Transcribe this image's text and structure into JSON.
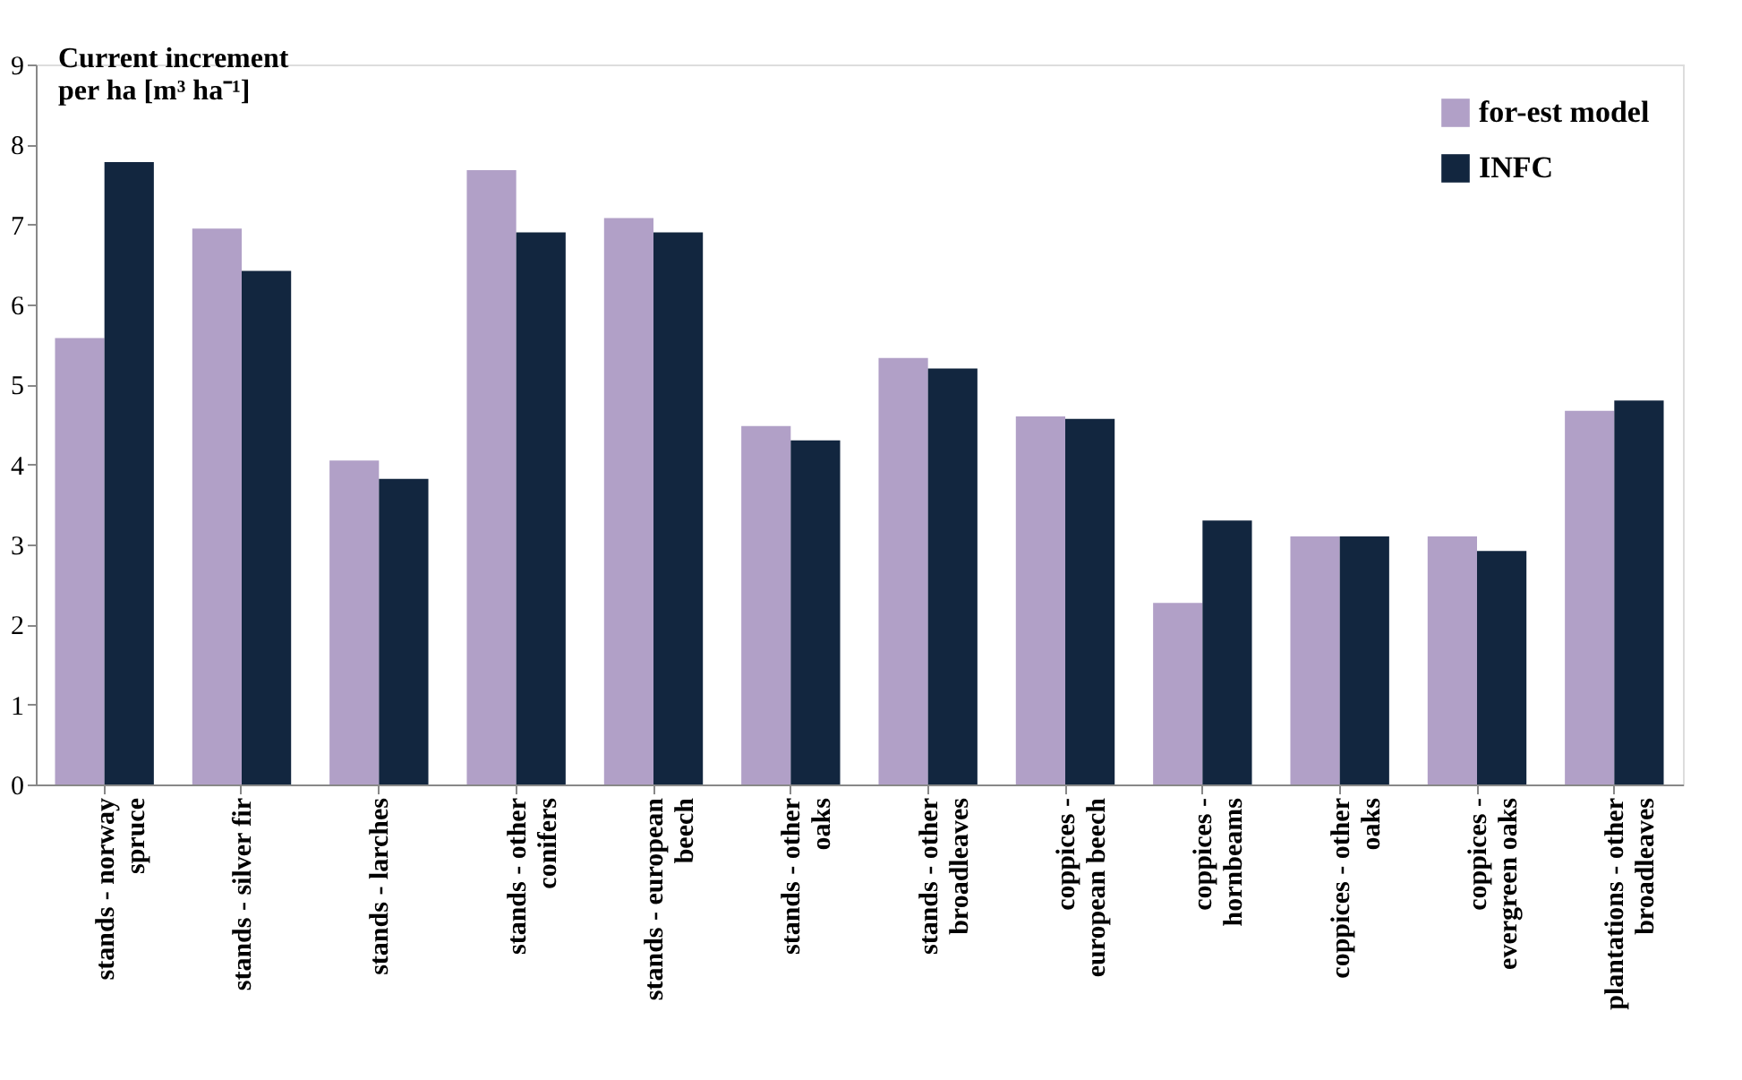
{
  "chart_data": {
    "type": "bar",
    "ylabel": "Current increment\nper ha [m³ ha⁻¹]",
    "categories": [
      "stands - norway\nspruce",
      "stands - silver fir",
      "stands - larches",
      "stands - other\nconifers",
      "stands - european\nbeech",
      "stands - other\noaks",
      "stands - other\nbroadleaves",
      "coppices -\neuropean beech",
      "coppices -\nhornbeams",
      "coppices - other\noaks",
      "coppices -\nevergreen oaks",
      "plantations - other\nbroadleaves"
    ],
    "series": [
      {
        "name": "for-est model",
        "color": "#b1a0c7",
        "values": [
          5.58,
          6.95,
          4.05,
          7.68,
          7.08,
          4.48,
          5.33,
          4.6,
          2.27,
          3.1,
          3.1,
          4.67
        ]
      },
      {
        "name": "INFC",
        "color": "#12263f",
        "values": [
          7.78,
          6.42,
          3.82,
          6.9,
          6.9,
          4.3,
          5.2,
          4.57,
          3.3,
          3.1,
          2.92,
          4.8
        ]
      }
    ],
    "ylim": [
      0,
      9
    ],
    "yticks": [
      0,
      1,
      2,
      3,
      4,
      5,
      6,
      7,
      8,
      9
    ],
    "grid": false,
    "legend": "top right"
  }
}
